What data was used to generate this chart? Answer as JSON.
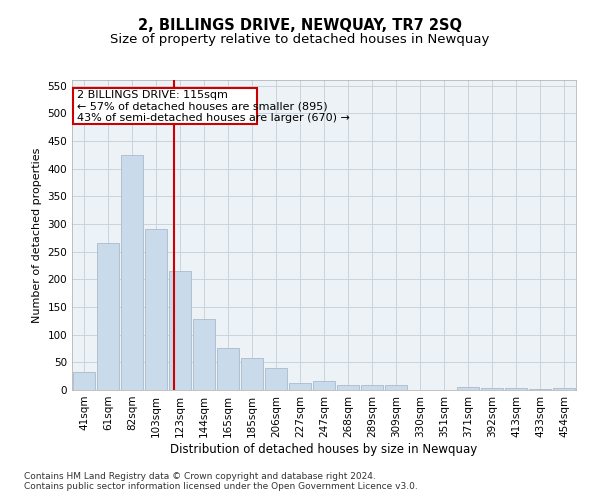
{
  "title": "2, BILLINGS DRIVE, NEWQUAY, TR7 2SQ",
  "subtitle": "Size of property relative to detached houses in Newquay",
  "xlabel": "Distribution of detached houses by size in Newquay",
  "ylabel": "Number of detached properties",
  "categories": [
    "41sqm",
    "61sqm",
    "82sqm",
    "103sqm",
    "123sqm",
    "144sqm",
    "165sqm",
    "185sqm",
    "206sqm",
    "227sqm",
    "247sqm",
    "268sqm",
    "289sqm",
    "309sqm",
    "330sqm",
    "351sqm",
    "371sqm",
    "392sqm",
    "413sqm",
    "433sqm",
    "454sqm"
  ],
  "values": [
    32,
    265,
    425,
    290,
    215,
    128,
    76,
    58,
    40,
    12,
    17,
    9,
    9,
    9,
    0,
    0,
    5,
    4,
    3,
    1,
    3
  ],
  "bar_color": "#c9daea",
  "bar_edgecolor": "#aabbcc",
  "vline_color": "#cc0000",
  "annotation_line1": "2 BILLINGS DRIVE: 115sqm",
  "annotation_line2": "← 57% of detached houses are smaller (895)",
  "annotation_line3": "43% of semi-detached houses are larger (670) →",
  "annotation_box_facecolor": "white",
  "annotation_box_edgecolor": "#cc0000",
  "ylim": [
    0,
    560
  ],
  "yticks": [
    0,
    50,
    100,
    150,
    200,
    250,
    300,
    350,
    400,
    450,
    500,
    550
  ],
  "grid_color": "#c8d4de",
  "background_color": "#edf2f7",
  "footer1": "Contains HM Land Registry data © Crown copyright and database right 2024.",
  "footer2": "Contains public sector information licensed under the Open Government Licence v3.0.",
  "title_fontsize": 10.5,
  "subtitle_fontsize": 9.5,
  "xlabel_fontsize": 8.5,
  "ylabel_fontsize": 8,
  "tick_fontsize": 7.5,
  "annot_fontsize": 8,
  "footer_fontsize": 6.5
}
